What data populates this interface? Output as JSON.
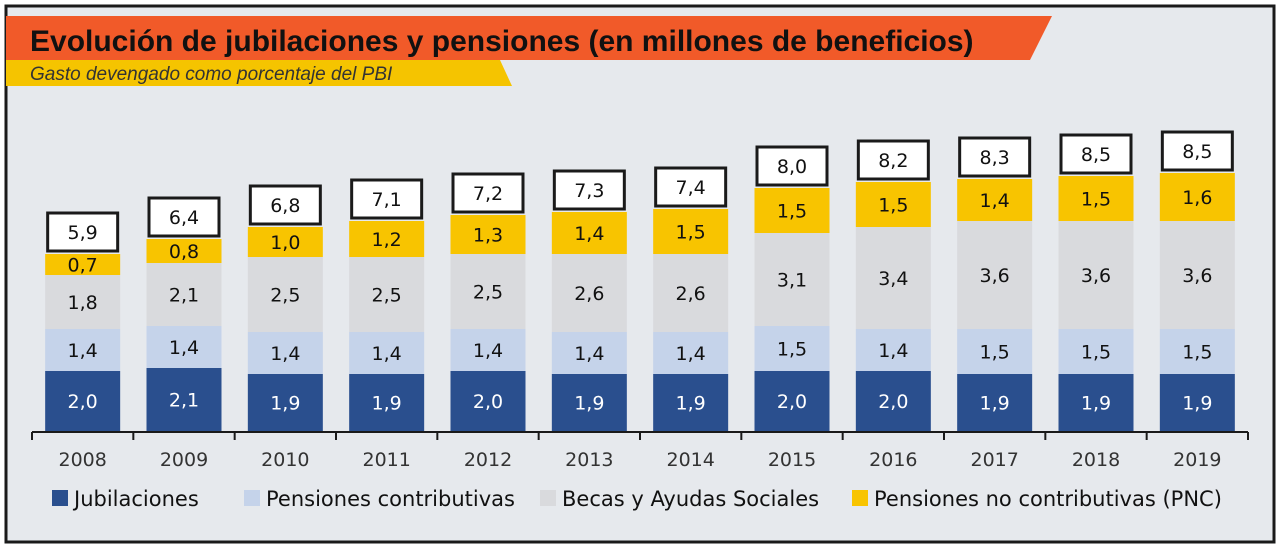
{
  "colors": {
    "background": "#e6e9ed",
    "frame": "#1a1a1a",
    "title_band": "#f15a29",
    "subtitle_band": "#f5c400",
    "jubilaciones": "#2a4f8e",
    "pensiones_contributivas": "#c5d3ea",
    "becas": "#d9dadd",
    "pnc": "#f8c400"
  },
  "chart_data": {
    "type": "bar",
    "stacked": true,
    "title": "Evolución de jubilaciones y pensiones (en millones de beneficios)",
    "subtitle": "Gasto devengado como porcentaje del PBI",
    "categories": [
      "2008",
      "2009",
      "2010",
      "2011",
      "2012",
      "2013",
      "2014",
      "2015",
      "2016",
      "2017",
      "2018",
      "2019"
    ],
    "series": [
      {
        "name": "Jubilaciones",
        "color_key": "jubilaciones",
        "text_color": "#ffffff",
        "values": [
          2.0,
          2.1,
          1.9,
          1.9,
          2.0,
          1.9,
          1.9,
          2.0,
          2.0,
          1.9,
          1.9,
          1.9
        ],
        "labels": [
          "2,0",
          "2,1",
          "1,9",
          "1,9",
          "2,0",
          "1,9",
          "1,9",
          "2,0",
          "2,0",
          "1,9",
          "1,9",
          "1,9"
        ]
      },
      {
        "name": "Pensiones contributivas",
        "color_key": "pensiones_contributivas",
        "text_color": "#111111",
        "values": [
          1.4,
          1.4,
          1.4,
          1.4,
          1.4,
          1.4,
          1.4,
          1.5,
          1.4,
          1.5,
          1.5,
          1.5
        ],
        "labels": [
          "1,4",
          "1,4",
          "1,4",
          "1,4",
          "1,4",
          "1,4",
          "1,4",
          "1,5",
          "1,4",
          "1,5",
          "1,5",
          "1,5"
        ]
      },
      {
        "name": "Becas y Ayudas Sociales",
        "color_key": "becas",
        "text_color": "#111111",
        "values": [
          1.8,
          2.1,
          2.5,
          2.5,
          2.5,
          2.6,
          2.6,
          3.1,
          3.4,
          3.6,
          3.6,
          3.6
        ],
        "labels": [
          "1,8",
          "2,1",
          "2,5",
          "2,5",
          "2,5",
          "2,6",
          "2,6",
          "3,1",
          "3,4",
          "3,6",
          "3,6",
          "3,6"
        ]
      },
      {
        "name": "Pensiones no contributivas (PNC)",
        "color_key": "pnc",
        "text_color": "#111111",
        "values": [
          0.7,
          0.8,
          1.0,
          1.2,
          1.3,
          1.4,
          1.5,
          1.5,
          1.5,
          1.4,
          1.5,
          1.6
        ],
        "labels": [
          "0,7",
          "0,8",
          "1,0",
          "1,2",
          "1,3",
          "1,4",
          "1,5",
          "1,5",
          "1,5",
          "1,4",
          "1,5",
          "1,6"
        ]
      }
    ],
    "totals": [
      5.9,
      6.4,
      6.8,
      7.1,
      7.2,
      7.3,
      7.4,
      8.0,
      8.2,
      8.3,
      8.5,
      8.5
    ],
    "total_labels": [
      "5,9",
      "6,4",
      "6,8",
      "7,1",
      "7,2",
      "7,3",
      "7,4",
      "8,0",
      "8,2",
      "8,3",
      "8,5",
      "8,5"
    ],
    "xlabel": "",
    "ylabel": "",
    "ylim": [
      0,
      10
    ],
    "grid": false,
    "legend_position": "bottom"
  }
}
